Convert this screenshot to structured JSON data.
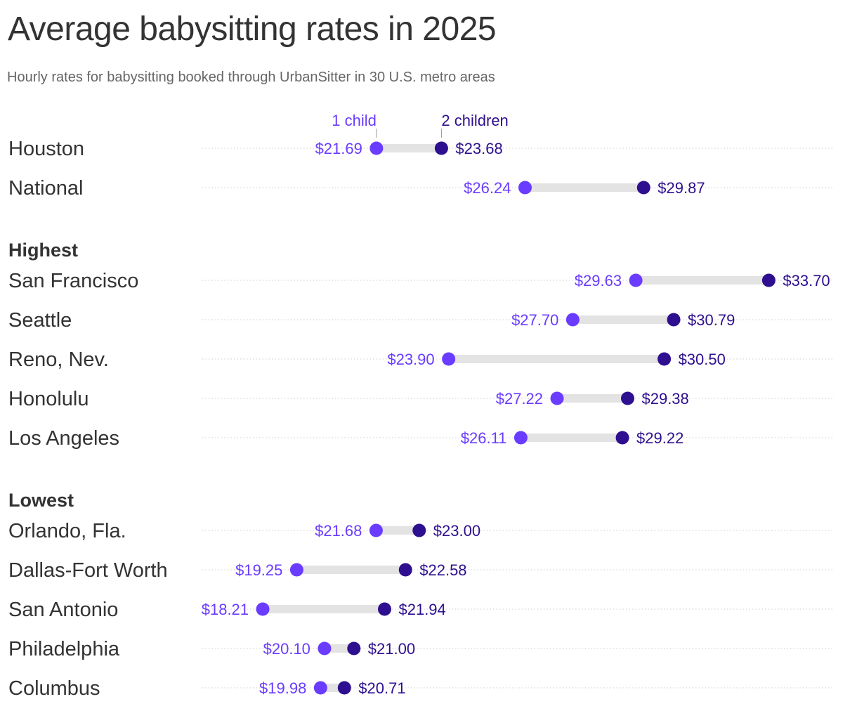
{
  "title": "Average babysitting rates in 2025",
  "subtitle": "Hourly rates for babysitting booked through UrbanSitter in 30 U.S. metro areas",
  "chart_data": {
    "type": "dumbbell",
    "xlim": [
      16.36,
      35.67
    ],
    "grid": true,
    "colors": {
      "one_child": "#6a3cff",
      "two_children": "#2e0f8f",
      "connector": "#e3e3e3",
      "gridline": "#cccccc"
    },
    "legend": {
      "one_child": "1 child",
      "two_children": "2 children",
      "placement": "top, annotating first row"
    },
    "groups": [
      {
        "label": "",
        "rows": [
          {
            "name": "Houston",
            "one_child": 21.69,
            "two_children": 23.68,
            "one_label": "$21.69",
            "two_label": "$23.68"
          },
          {
            "name": "National",
            "one_child": 26.24,
            "two_children": 29.87,
            "one_label": "$26.24",
            "two_label": "$29.87"
          }
        ]
      },
      {
        "label": "Highest",
        "rows": [
          {
            "name": "San Francisco",
            "one_child": 29.63,
            "two_children": 33.7,
            "one_label": "$29.63",
            "two_label": "$33.70"
          },
          {
            "name": "Seattle",
            "one_child": 27.7,
            "two_children": 30.79,
            "one_label": "$27.70",
            "two_label": "$30.79"
          },
          {
            "name": "Reno, Nev.",
            "one_child": 23.9,
            "two_children": 30.5,
            "one_label": "$23.90",
            "two_label": "$30.50"
          },
          {
            "name": "Honolulu",
            "one_child": 27.22,
            "two_children": 29.38,
            "one_label": "$27.22",
            "two_label": "$29.38"
          },
          {
            "name": "Los Angeles",
            "one_child": 26.11,
            "two_children": 29.22,
            "one_label": "$26.11",
            "two_label": "$29.22"
          }
        ]
      },
      {
        "label": "Lowest",
        "rows": [
          {
            "name": "Orlando, Fla.",
            "one_child": 21.68,
            "two_children": 23.0,
            "one_label": "$21.68",
            "two_label": "$23.00"
          },
          {
            "name": "Dallas-Fort Worth",
            "one_child": 19.25,
            "two_children": 22.58,
            "one_label": "$19.25",
            "two_label": "$22.58"
          },
          {
            "name": "San Antonio",
            "one_child": 18.21,
            "two_children": 21.94,
            "one_label": "$18.21",
            "two_label": "$21.94"
          },
          {
            "name": "Philadelphia",
            "one_child": 20.1,
            "two_children": 21.0,
            "one_label": "$20.10",
            "two_label": "$21.00"
          },
          {
            "name": "Columbus",
            "one_child": 19.98,
            "two_children": 20.71,
            "one_label": "$19.98",
            "two_label": "$20.71"
          }
        ]
      }
    ]
  }
}
